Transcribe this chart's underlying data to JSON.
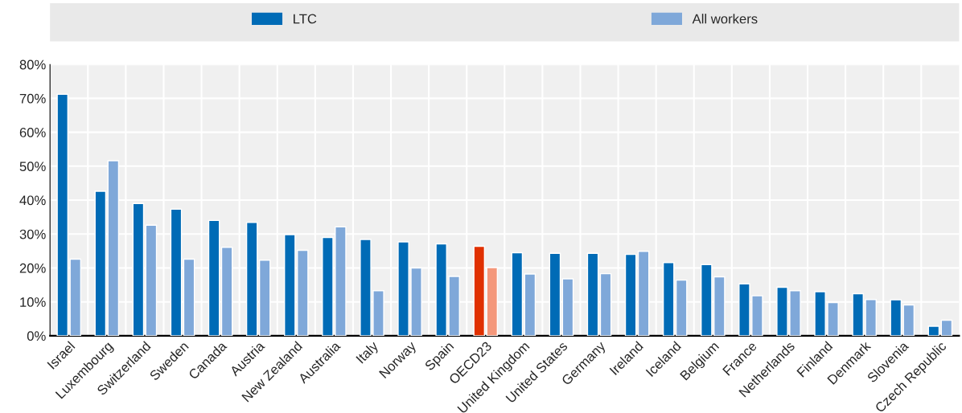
{
  "chart_data": {
    "type": "bar",
    "categories": [
      "Israel",
      "Luxembourg",
      "Switzerland",
      "Sweden",
      "Canada",
      "Austria",
      "New Zealand",
      "Australia",
      "Italy",
      "Norway",
      "Spain",
      "OECD23",
      "United Kingdom",
      "United States",
      "Germany",
      "Ireland",
      "Iceland",
      "Belgium",
      "France",
      "Netherlands",
      "Finland",
      "Denmark",
      "Slovenia",
      "Czech Republic"
    ],
    "series": [
      {
        "name": "LTC",
        "color": "#006bb6",
        "colors": [
          "#006bb6",
          "#006bb6",
          "#006bb6",
          "#006bb6",
          "#006bb6",
          "#006bb6",
          "#006bb6",
          "#006bb6",
          "#006bb6",
          "#006bb6",
          "#006bb6",
          "#e03000",
          "#006bb6",
          "#006bb6",
          "#006bb6",
          "#006bb6",
          "#006bb6",
          "#006bb6",
          "#006bb6",
          "#006bb6",
          "#006bb6",
          "#006bb6",
          "#006bb6",
          "#006bb6"
        ],
        "values": [
          71.2,
          42.6,
          39.0,
          37.3,
          34.0,
          33.4,
          29.8,
          29.0,
          28.4,
          27.7,
          27.1,
          26.4,
          24.5,
          24.3,
          24.3,
          24.0,
          21.6,
          21.0,
          15.3,
          14.3,
          13.0,
          12.4,
          10.6,
          2.8
        ]
      },
      {
        "name": "All workers",
        "color": "#7fa8d9",
        "colors": [
          "#7fa8d9",
          "#7fa8d9",
          "#7fa8d9",
          "#7fa8d9",
          "#7fa8d9",
          "#7fa8d9",
          "#7fa8d9",
          "#7fa8d9",
          "#7fa8d9",
          "#7fa8d9",
          "#7fa8d9",
          "#f4977a",
          "#7fa8d9",
          "#7fa8d9",
          "#7fa8d9",
          "#7fa8d9",
          "#7fa8d9",
          "#7fa8d9",
          "#7fa8d9",
          "#7fa8d9",
          "#7fa8d9",
          "#7fa8d9",
          "#7fa8d9",
          "#7fa8d9"
        ],
        "values": [
          22.6,
          51.6,
          32.6,
          22.6,
          26.1,
          22.3,
          25.2,
          32.1,
          13.3,
          20.0,
          17.5,
          20.1,
          18.2,
          16.8,
          18.3,
          24.9,
          16.4,
          17.4,
          11.8,
          13.3,
          9.8,
          10.7,
          9.1,
          4.6
        ]
      }
    ],
    "ylim": [
      0,
      80
    ],
    "yticks": [
      {
        "value": 0,
        "label": "0%"
      },
      {
        "value": 10,
        "label": "10%"
      },
      {
        "value": 20,
        "label": "20%"
      },
      {
        "value": 30,
        "label": "30%"
      },
      {
        "value": 40,
        "label": "40%"
      },
      {
        "value": 50,
        "label": "50%"
      },
      {
        "value": 60,
        "label": "60%"
      },
      {
        "value": 70,
        "label": "70%"
      },
      {
        "value": 80,
        "label": "80%"
      }
    ],
    "grid": true,
    "legend": "top"
  }
}
